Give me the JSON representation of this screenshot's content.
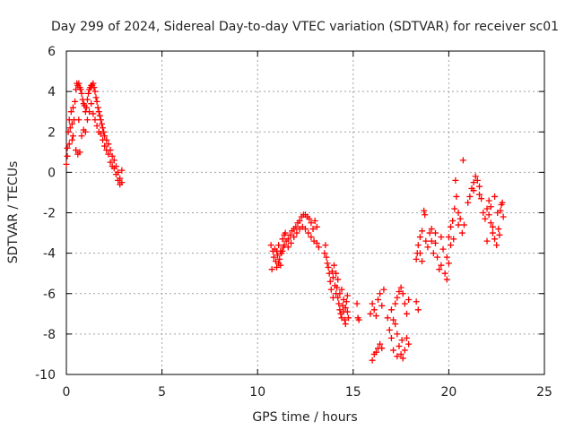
{
  "chart_data": {
    "type": "scatter",
    "title": "Day 299 of 2024, Sidereal Day-to-day VTEC variation (SDTVAR) for receiver sc01",
    "xlabel": "GPS time / hours",
    "ylabel": "SDTVAR / TECUs",
    "xlim": [
      0,
      25
    ],
    "ylim": [
      -10,
      6
    ],
    "xticks": [
      "0",
      "5",
      "10",
      "15",
      "20",
      "25"
    ],
    "yticks": [
      "-10",
      "-8",
      "-6",
      "-4",
      "-2",
      "0",
      "2",
      "4",
      "6"
    ],
    "grid": true,
    "marker": "+",
    "color": "#ff0000",
    "series": [
      {
        "name": "sc01",
        "points": [
          [
            0.0,
            0.4
          ],
          [
            0.05,
            1.2
          ],
          [
            0.1,
            2.0
          ],
          [
            0.15,
            2.6
          ],
          [
            0.2,
            2.2
          ],
          [
            0.25,
            3.0
          ],
          [
            0.3,
            2.4
          ],
          [
            0.35,
            3.2
          ],
          [
            0.4,
            2.6
          ],
          [
            0.45,
            3.5
          ],
          [
            0.5,
            4.1
          ],
          [
            0.55,
            4.4
          ],
          [
            0.6,
            4.3
          ],
          [
            0.65,
            4.4
          ],
          [
            0.7,
            4.2
          ],
          [
            0.75,
            4.1
          ],
          [
            0.8,
            3.9
          ],
          [
            0.85,
            3.6
          ],
          [
            0.9,
            3.4
          ],
          [
            0.95,
            3.3
          ],
          [
            1.0,
            3.0
          ],
          [
            1.05,
            3.2
          ],
          [
            1.1,
            3.6
          ],
          [
            1.15,
            3.9
          ],
          [
            1.2,
            4.1
          ],
          [
            1.25,
            4.2
          ],
          [
            1.3,
            4.3
          ],
          [
            1.35,
            4.3
          ],
          [
            1.4,
            4.4
          ],
          [
            1.45,
            4.2
          ],
          [
            1.5,
            4.0
          ],
          [
            1.55,
            3.7
          ],
          [
            1.6,
            3.5
          ],
          [
            1.65,
            3.2
          ],
          [
            1.7,
            3.0
          ],
          [
            1.75,
            2.8
          ],
          [
            1.8,
            2.6
          ],
          [
            1.85,
            2.4
          ],
          [
            1.9,
            2.2
          ],
          [
            1.95,
            2.0
          ],
          [
            2.0,
            1.8
          ],
          [
            2.1,
            1.6
          ],
          [
            2.2,
            1.4
          ],
          [
            2.3,
            1.1
          ],
          [
            2.4,
            0.8
          ],
          [
            2.5,
            0.6
          ],
          [
            2.6,
            0.3
          ],
          [
            2.7,
            0.0
          ],
          [
            2.8,
            -0.3
          ],
          [
            2.9,
            -0.5
          ],
          [
            0.05,
            0.8
          ],
          [
            0.15,
            1.4
          ],
          [
            0.3,
            1.6
          ],
          [
            0.5,
            1.1
          ],
          [
            0.6,
            0.9
          ],
          [
            0.7,
            1.0
          ],
          [
            0.8,
            1.8
          ],
          [
            0.9,
            2.1
          ],
          [
            1.0,
            2.0
          ],
          [
            1.1,
            2.6
          ],
          [
            1.2,
            3.0
          ],
          [
            1.3,
            3.4
          ],
          [
            1.4,
            2.9
          ],
          [
            1.5,
            2.6
          ],
          [
            1.6,
            2.3
          ],
          [
            1.7,
            2.0
          ],
          [
            1.8,
            1.9
          ],
          [
            1.9,
            1.6
          ],
          [
            2.0,
            1.3
          ],
          [
            2.1,
            1.1
          ],
          [
            2.2,
            0.9
          ],
          [
            2.3,
            0.5
          ],
          [
            2.4,
            0.3
          ],
          [
            2.5,
            0.2
          ],
          [
            2.6,
            -0.1
          ],
          [
            2.7,
            -0.4
          ],
          [
            2.8,
            -0.6
          ],
          [
            2.9,
            0.1
          ],
          [
            0.35,
            1.8
          ],
          [
            0.65,
            2.6
          ],
          [
            10.7,
            -3.6
          ],
          [
            10.75,
            -4.8
          ],
          [
            10.8,
            -3.9
          ],
          [
            10.85,
            -4.2
          ],
          [
            10.9,
            -3.8
          ],
          [
            10.95,
            -4.4
          ],
          [
            11.0,
            -3.9
          ],
          [
            11.05,
            -4.1
          ],
          [
            11.1,
            -4.5
          ],
          [
            11.15,
            -4.3
          ],
          [
            11.2,
            -4.6
          ],
          [
            11.25,
            -4.0
          ],
          [
            11.3,
            -3.9
          ],
          [
            11.35,
            -3.7
          ],
          [
            11.4,
            -3.6
          ],
          [
            11.5,
            -3.4
          ],
          [
            11.6,
            -3.3
          ],
          [
            11.7,
            -3.1
          ],
          [
            11.8,
            -2.9
          ],
          [
            11.9,
            -2.8
          ],
          [
            12.0,
            -2.7
          ],
          [
            12.1,
            -2.5
          ],
          [
            12.2,
            -2.4
          ],
          [
            12.3,
            -2.2
          ],
          [
            12.4,
            -2.1
          ],
          [
            12.5,
            -2.1
          ],
          [
            12.6,
            -2.2
          ],
          [
            12.7,
            -2.3
          ],
          [
            12.8,
            -2.5
          ],
          [
            12.9,
            -2.8
          ],
          [
            11.3,
            -3.3
          ],
          [
            11.45,
            -3.0
          ],
          [
            11.6,
            -3.7
          ],
          [
            11.75,
            -3.5
          ],
          [
            11.9,
            -3.2
          ],
          [
            12.05,
            -3.0
          ],
          [
            12.2,
            -2.8
          ],
          [
            12.35,
            -2.7
          ],
          [
            12.5,
            -2.8
          ],
          [
            12.65,
            -3.0
          ],
          [
            12.8,
            -3.2
          ],
          [
            12.95,
            -3.4
          ],
          [
            13.1,
            -3.5
          ],
          [
            13.2,
            -3.7
          ],
          [
            13.0,
            -2.4
          ],
          [
            13.1,
            -2.7
          ],
          [
            11.1,
            -3.6
          ],
          [
            11.4,
            -3.1
          ],
          [
            11.2,
            -3.9
          ],
          [
            11.0,
            -4.7
          ],
          [
            13.5,
            -4.0
          ],
          [
            13.55,
            -3.6
          ],
          [
            13.6,
            -4.2
          ],
          [
            13.65,
            -4.5
          ],
          [
            13.7,
            -4.7
          ],
          [
            13.75,
            -5.0
          ],
          [
            13.8,
            -5.4
          ],
          [
            13.85,
            -5.8
          ],
          [
            13.9,
            -4.9
          ],
          [
            13.95,
            -5.2
          ],
          [
            14.0,
            -4.6
          ],
          [
            14.05,
            -5.6
          ],
          [
            14.1,
            -6.0
          ],
          [
            14.15,
            -5.7
          ],
          [
            14.2,
            -6.2
          ],
          [
            14.25,
            -6.5
          ],
          [
            14.3,
            -6.8
          ],
          [
            14.35,
            -7.0
          ],
          [
            14.4,
            -7.2
          ],
          [
            14.45,
            -6.6
          ],
          [
            14.5,
            -6.9
          ],
          [
            14.55,
            -7.3
          ],
          [
            14.6,
            -7.5
          ],
          [
            14.65,
            -6.4
          ],
          [
            14.7,
            -6.1
          ],
          [
            14.3,
            -6.0
          ],
          [
            14.2,
            -5.3
          ],
          [
            14.4,
            -5.8
          ],
          [
            14.6,
            -6.7
          ],
          [
            14.75,
            -7.2
          ],
          [
            13.95,
            -6.2
          ],
          [
            14.1,
            -5.0
          ],
          [
            14.5,
            -6.3
          ],
          [
            14.7,
            -6.9
          ],
          [
            15.2,
            -6.5
          ],
          [
            15.3,
            -7.3
          ],
          [
            15.25,
            -7.2
          ],
          [
            15.9,
            -7.0
          ],
          [
            16.0,
            -6.5
          ],
          [
            16.1,
            -6.8
          ],
          [
            16.2,
            -7.1
          ],
          [
            16.3,
            -6.3
          ],
          [
            16.4,
            -6.0
          ],
          [
            16.5,
            -6.6
          ],
          [
            16.6,
            -5.8
          ],
          [
            16.0,
            -9.3
          ],
          [
            16.1,
            -9.0
          ],
          [
            16.2,
            -8.9
          ],
          [
            16.3,
            -8.7
          ],
          [
            16.4,
            -8.5
          ],
          [
            16.5,
            -8.7
          ],
          [
            16.8,
            -7.2
          ],
          [
            16.9,
            -7.8
          ],
          [
            17.0,
            -8.2
          ],
          [
            17.1,
            -8.8
          ],
          [
            17.2,
            -7.5
          ],
          [
            17.3,
            -8.0
          ],
          [
            17.4,
            -8.6
          ],
          [
            17.5,
            -9.0
          ],
          [
            17.6,
            -9.2
          ],
          [
            17.7,
            -8.8
          ],
          [
            17.8,
            -8.2
          ],
          [
            17.9,
            -8.5
          ],
          [
            17.0,
            -6.8
          ],
          [
            17.1,
            -7.3
          ],
          [
            17.2,
            -6.5
          ],
          [
            17.3,
            -6.2
          ],
          [
            17.4,
            -5.9
          ],
          [
            17.5,
            -5.7
          ],
          [
            17.6,
            -6.0
          ],
          [
            17.7,
            -6.5
          ],
          [
            17.8,
            -7.0
          ],
          [
            17.9,
            -6.3
          ],
          [
            17.3,
            -9.1
          ],
          [
            17.55,
            -8.3
          ],
          [
            18.3,
            -6.4
          ],
          [
            18.4,
            -6.8
          ],
          [
            18.3,
            -4.3
          ],
          [
            18.35,
            -4.0
          ],
          [
            18.4,
            -3.6
          ],
          [
            18.5,
            -3.2
          ],
          [
            18.6,
            -2.9
          ],
          [
            18.7,
            -1.9
          ],
          [
            18.75,
            -2.1
          ],
          [
            18.8,
            -3.4
          ],
          [
            18.9,
            -3.7
          ],
          [
            19.0,
            -3.0
          ],
          [
            19.1,
            -2.8
          ],
          [
            19.2,
            -4.0
          ],
          [
            19.3,
            -3.5
          ],
          [
            19.4,
            -4.2
          ],
          [
            19.5,
            -4.8
          ],
          [
            19.6,
            -4.6
          ],
          [
            19.7,
            -3.8
          ],
          [
            19.8,
            -5.0
          ],
          [
            19.9,
            -5.3
          ],
          [
            20.0,
            -3.2
          ],
          [
            20.1,
            -2.7
          ],
          [
            20.2,
            -2.4
          ],
          [
            20.3,
            -1.8
          ],
          [
            20.4,
            -1.2
          ],
          [
            20.35,
            -0.4
          ],
          [
            20.5,
            -2.0
          ],
          [
            20.6,
            -2.3
          ],
          [
            20.7,
            -3.0
          ],
          [
            20.8,
            -2.6
          ],
          [
            20.75,
            0.6
          ],
          [
            20.0,
            -4.5
          ],
          [
            19.9,
            -4.2
          ],
          [
            20.1,
            -3.6
          ],
          [
            20.25,
            -3.3
          ],
          [
            20.5,
            -2.6
          ],
          [
            19.3,
            -3.0
          ],
          [
            19.6,
            -3.2
          ],
          [
            18.6,
            -4.4
          ],
          [
            18.5,
            -4.0
          ],
          [
            19.1,
            -3.4
          ],
          [
            21.0,
            -1.5
          ],
          [
            21.1,
            -1.2
          ],
          [
            21.2,
            -0.8
          ],
          [
            21.3,
            -0.5
          ],
          [
            21.4,
            -0.2
          ],
          [
            21.5,
            -0.4
          ],
          [
            21.6,
            -0.7
          ],
          [
            21.7,
            -1.3
          ],
          [
            21.8,
            -2.0
          ],
          [
            21.9,
            -2.3
          ],
          [
            22.0,
            -1.8
          ],
          [
            22.1,
            -1.4
          ],
          [
            22.2,
            -2.5
          ],
          [
            22.3,
            -3.0
          ],
          [
            22.4,
            -3.3
          ],
          [
            22.5,
            -3.6
          ],
          [
            22.6,
            -2.8
          ],
          [
            22.7,
            -1.9
          ],
          [
            22.8,
            -1.5
          ],
          [
            22.85,
            -2.2
          ],
          [
            22.0,
            -3.4
          ],
          [
            22.2,
            -1.7
          ],
          [
            22.4,
            -1.2
          ],
          [
            22.55,
            -2.0
          ],
          [
            22.65,
            -3.1
          ],
          [
            21.3,
            -0.9
          ],
          [
            21.6,
            -1.1
          ],
          [
            22.75,
            -1.6
          ],
          [
            22.3,
            -2.7
          ],
          [
            22.1,
            -2.1
          ]
        ]
      }
    ]
  }
}
